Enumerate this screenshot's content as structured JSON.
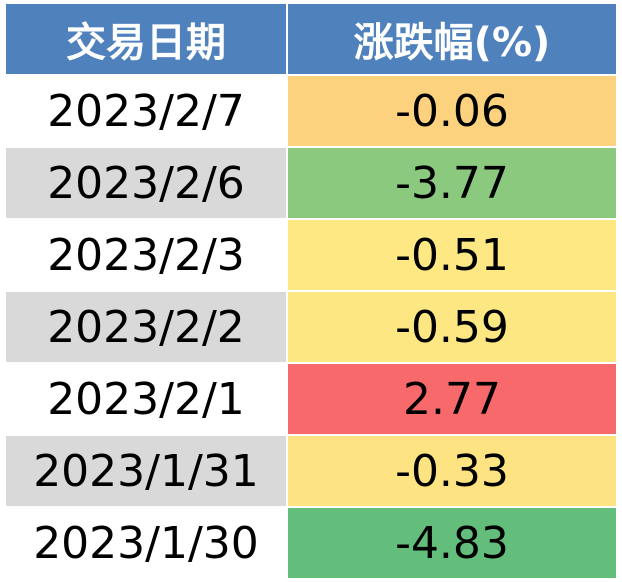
{
  "table": {
    "header": [
      "交易日期",
      "涨跌幅(%)"
    ],
    "header_color": "#4f81bd",
    "rows": [
      [
        "2023/2/7",
        "-0.06"
      ],
      [
        "2023/2/6",
        "-3.77"
      ],
      [
        "2023/2/3",
        "-0.51"
      ],
      [
        "2023/2/2",
        "-0.59"
      ],
      [
        "2023/2/1",
        "2.77"
      ],
      [
        "2023/1/31",
        "-0.33"
      ],
      [
        "2023/1/30",
        "-4.83"
      ]
    ],
    "date_colors": [
      "#ffffff",
      "#d9d9d9",
      "#ffffff",
      "#d9d9d9",
      "#ffffff",
      "#d9d9d9",
      "#ffffff"
    ],
    "change_colors": [
      "#fcd27f",
      "#8ac97e",
      "#fde883",
      "#fde783",
      "#f8696b",
      "#fde382",
      "#63be7b"
    ]
  }
}
